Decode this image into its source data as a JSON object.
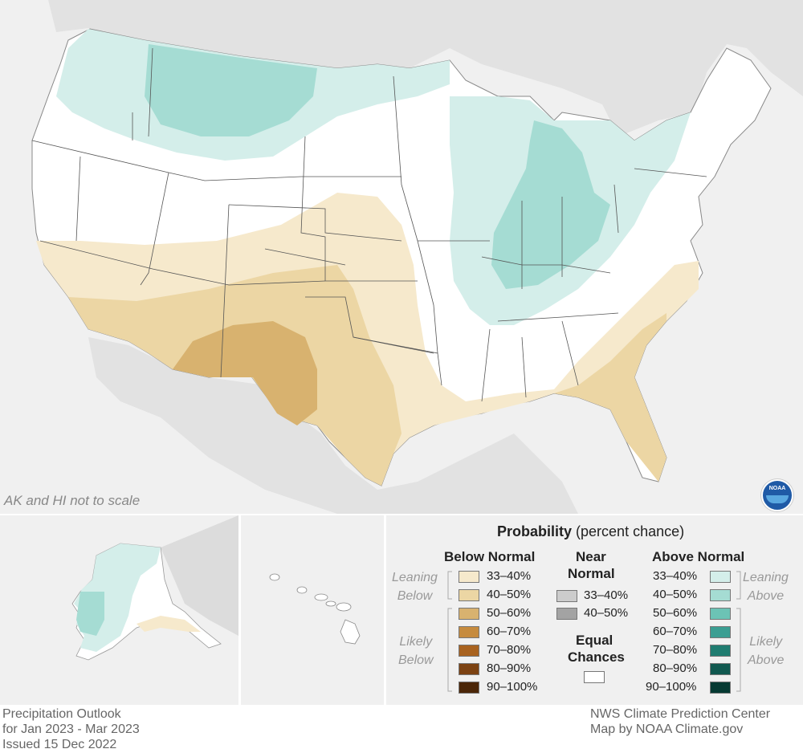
{
  "map": {
    "scale_note": "AK and HI not to scale"
  },
  "legend": {
    "title_bold": "Probability",
    "title_rest": "(percent chance)",
    "below_header": "Below Normal",
    "near_header_1": "Near",
    "near_header_2": "Normal",
    "above_header": "Above Normal",
    "leaning_below_1": "Leaning",
    "leaning_below_2": "Below",
    "likely_below_1": "Likely",
    "likely_below_2": "Below",
    "leaning_above_1": "Leaning",
    "leaning_above_2": "Above",
    "likely_above_1": "Likely",
    "likely_above_2": "Above",
    "equal_1": "Equal",
    "equal_2": "Chances",
    "below_items": [
      {
        "label": "33–40%",
        "color": "#f6e9cc"
      },
      {
        "label": "40–50%",
        "color": "#ecd6a4"
      },
      {
        "label": "50–60%",
        "color": "#d8b26f"
      },
      {
        "label": "60–70%",
        "color": "#c68b3e"
      },
      {
        "label": "70–80%",
        "color": "#a8621f"
      },
      {
        "label": "80–90%",
        "color": "#7c4212"
      },
      {
        "label": "90–100%",
        "color": "#4b2608"
      }
    ],
    "near_items": [
      {
        "label": "33–40%",
        "color": "#cccccc"
      },
      {
        "label": "40–50%",
        "color": "#a3a3a3"
      }
    ],
    "above_items": [
      {
        "label": "33–40%",
        "color": "#d4eeea"
      },
      {
        "label": "40–50%",
        "color": "#a5dcd3"
      },
      {
        "label": "50–60%",
        "color": "#6cc3b5"
      },
      {
        "label": "60–70%",
        "color": "#3b9e92"
      },
      {
        "label": "70–80%",
        "color": "#1f7c70"
      },
      {
        "label": "80–90%",
        "color": "#10584f"
      },
      {
        "label": "90–100%",
        "color": "#063a33"
      }
    ]
  },
  "footer": {
    "left_line1": "Precipitation Outlook",
    "left_line2": "for Jan 2023 - Mar 2023",
    "left_line3": "Issued 15 Dec 2022",
    "right_line1": "NWS Climate Prediction Center",
    "right_line2": "Map by NOAA Climate.gov"
  },
  "logo_text": "NOAA",
  "colors": {
    "background_land": "#e2e2e2",
    "equal_chances": "#ffffff",
    "above_33_40": "#d4eeea",
    "above_40_50": "#a5dcd3",
    "below_33_40": "#f6e9cc",
    "below_40_50": "#ecd6a4",
    "below_50_60": "#d8b26f"
  }
}
